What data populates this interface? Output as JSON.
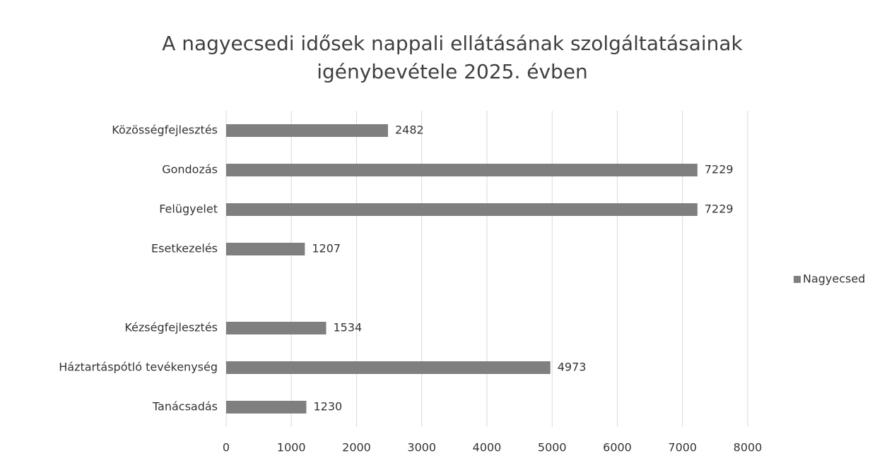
{
  "chart_data": {
    "type": "bar",
    "orientation": "horizontal",
    "title": [
      "A nagyecsedi idősek nappali ellátásának szolgáltatásainak",
      "igénybevétele 2025. évben"
    ],
    "categories": [
      "Közösségfejlesztés",
      "Gondozás",
      "Felügyelet",
      "Esetkezelés",
      null,
      "Kézségfejlesztés",
      "Háztartáspótló tevékenység",
      "Tanácsadás"
    ],
    "series": [
      {
        "name": "Nagyecsed",
        "color": "#7f7f7f",
        "values": [
          2482,
          7229,
          7229,
          1207,
          null,
          1534,
          4973,
          1230
        ]
      }
    ],
    "xlim": [
      0,
      8000
    ],
    "xticks": [
      0,
      1000,
      2000,
      3000,
      4000,
      5000,
      6000,
      7000,
      8000
    ],
    "grid": true,
    "legend": "right"
  }
}
